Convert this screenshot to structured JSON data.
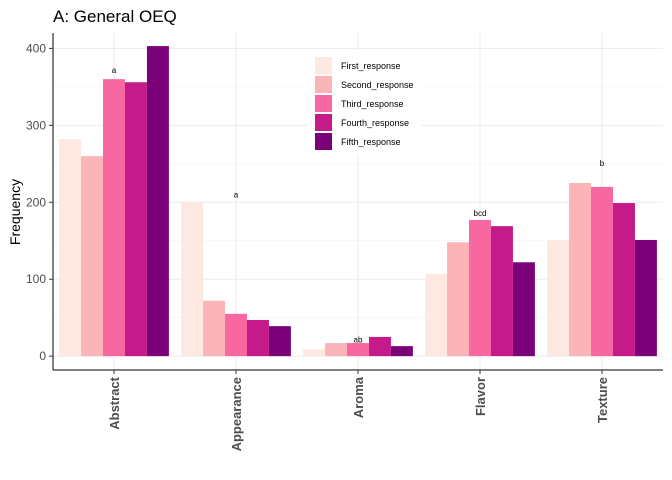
{
  "chart_data": {
    "type": "bar",
    "title": "A: General OEQ",
    "xlabel": "",
    "ylabel": "Frequency",
    "ylim": [
      -18,
      420
    ],
    "yticks": [
      0,
      100,
      200,
      300,
      400
    ],
    "grid": true,
    "legend_position": "top-center",
    "categories": [
      "Abstract",
      "Appearance",
      "Aroma",
      "Flavor",
      "Texture"
    ],
    "series": [
      {
        "name": "First_response",
        "color": "#fde9e1",
        "values": [
          282,
          201,
          9,
          107,
          151
        ]
      },
      {
        "name": "Second_response",
        "color": "#fbb5b9",
        "values": [
          260,
          72,
          17,
          148,
          225
        ]
      },
      {
        "name": "Third_response",
        "color": "#f768a1",
        "values": [
          360,
          55,
          17,
          177,
          220
        ]
      },
      {
        "name": "Fourth_response",
        "color": "#c51b8a",
        "values": [
          356,
          47,
          25,
          169,
          199
        ]
      },
      {
        "name": "Fifth_response",
        "color": "#7a0177",
        "values": [
          403,
          39,
          13,
          122,
          151
        ]
      }
    ],
    "annotations": [
      {
        "category": "Abstract",
        "text": "a",
        "y": 368
      },
      {
        "category": "Appearance",
        "text": "a",
        "y": 206
      },
      {
        "category": "Aroma",
        "text": "ab",
        "y": 18
      },
      {
        "category": "Flavor",
        "text": "bcd",
        "y": 182
      },
      {
        "category": "Texture",
        "text": "b",
        "y": 247
      }
    ]
  }
}
